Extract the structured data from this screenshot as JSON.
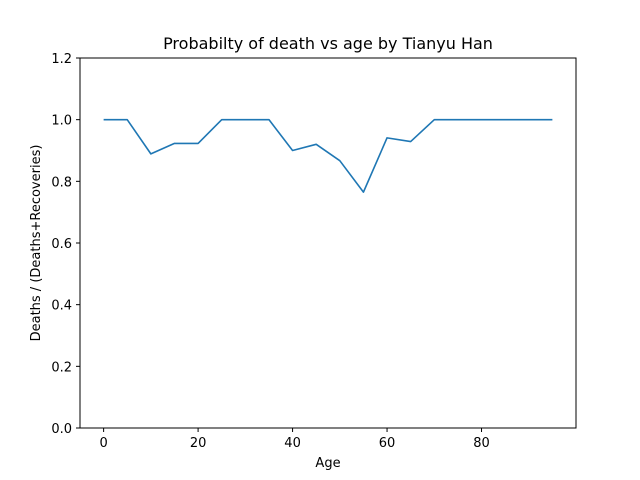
{
  "chart_data": {
    "type": "line",
    "title": "Probabilty of death vs age by Tianyu Han",
    "xlabel": "Age",
    "ylabel": "Deaths / (Deaths+Recoveries)",
    "xlim": [
      -5,
      100
    ],
    "ylim": [
      0.0,
      1.2
    ],
    "xticks": [
      0,
      20,
      40,
      60,
      80
    ],
    "xtick_labels": [
      "0",
      "20",
      "40",
      "60",
      "80"
    ],
    "yticks": [
      0.0,
      0.2,
      0.4,
      0.6,
      0.8,
      1.0,
      1.2
    ],
    "ytick_labels": [
      "0.0",
      "0.2",
      "0.4",
      "0.6",
      "0.8",
      "1.0",
      "1.2"
    ],
    "grid": false,
    "series": [
      {
        "color": "#1f77b4",
        "x": [
          0,
          5,
          10,
          15,
          20,
          25,
          30,
          35,
          40,
          45,
          50,
          55,
          60,
          65,
          70,
          75,
          80,
          85,
          90,
          95
        ],
        "y": [
          1.0,
          1.0,
          0.889,
          0.923,
          0.923,
          1.0,
          1.0,
          1.0,
          0.9,
          0.92,
          0.867,
          0.765,
          0.941,
          0.929,
          1.0,
          1.0,
          1.0,
          1.0,
          1.0,
          1.0
        ]
      }
    ]
  }
}
